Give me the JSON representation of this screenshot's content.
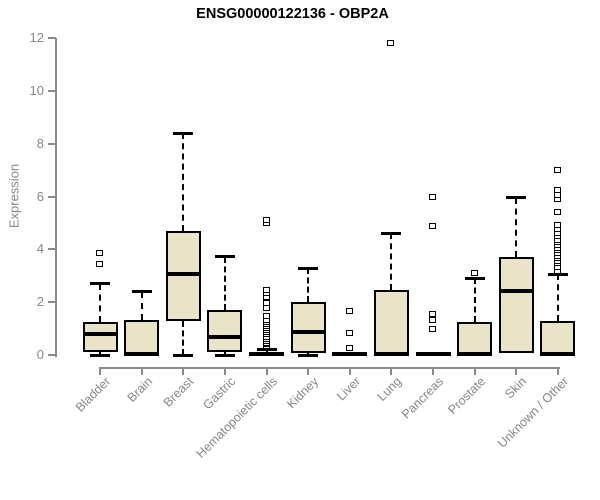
{
  "title": "ENSG00000122136 - OBP2A",
  "colors": {
    "box_fill": "#E9E3C7",
    "box_border": "#000000",
    "median": "#000000",
    "axis": "#8a8a8a",
    "axis_text": "#878787",
    "title_text": "#000000",
    "background": "#ffffff"
  },
  "chart_data": {
    "type": "boxplot",
    "title": "ENSG00000122136 - OBP2A",
    "xlabel": "",
    "ylabel": "Expression",
    "ylim": [
      0,
      12
    ],
    "y_ticks": [
      0,
      2,
      4,
      6,
      8,
      10,
      12
    ],
    "grid": false,
    "legend": "none",
    "categories": [
      "Bladder",
      "Brain",
      "Breast",
      "Gastric",
      "Hematopoietic cells",
      "Kidney",
      "Liver",
      "Lung",
      "Pancreas",
      "Prostate",
      "Skin",
      "Unknown / Other"
    ],
    "series": [
      {
        "name": "Bladder",
        "whisker_low": 0,
        "q1": 0.1,
        "median": 0.78,
        "q3": 1.25,
        "whisker_high": 2.7,
        "outliers": [
          3.42,
          3.85
        ]
      },
      {
        "name": "Brain",
        "whisker_low": 0,
        "q1": 0,
        "median": 0.05,
        "q3": 1.33,
        "whisker_high": 2.4,
        "outliers": []
      },
      {
        "name": "Breast",
        "whisker_low": 0,
        "q1": 1.3,
        "median": 3.05,
        "q3": 4.7,
        "whisker_high": 8.4,
        "outliers": []
      },
      {
        "name": "Gastric",
        "whisker_low": 0,
        "q1": 0.12,
        "median": 0.7,
        "q3": 1.72,
        "whisker_high": 3.72,
        "outliers": []
      },
      {
        "name": "Hematopoietic cells",
        "whisker_low": 0,
        "q1": 0,
        "median": 0.04,
        "q3": 0.12,
        "whisker_high": 0.2,
        "outliers": [
          0.31,
          0.38,
          0.45,
          0.52,
          0.6,
          0.68,
          0.76,
          0.84,
          0.92,
          1.0,
          1.08,
          1.16,
          1.24,
          1.32,
          1.45,
          1.77,
          1.96,
          2.18,
          2.32,
          2.46,
          5.0,
          5.1
        ]
      },
      {
        "name": "Kidney",
        "whisker_low": 0,
        "q1": 0.08,
        "median": 0.88,
        "q3": 2.0,
        "whisker_high": 3.28,
        "outliers": []
      },
      {
        "name": "Liver",
        "whisker_low": 0,
        "q1": 0,
        "median": 0.04,
        "q3": 0.1,
        "whisker_high": 0.15,
        "outliers": [
          0.23,
          0.82,
          1.64
        ]
      },
      {
        "name": "Lung",
        "whisker_low": 0,
        "q1": 0,
        "median": 0.05,
        "q3": 2.45,
        "whisker_high": 4.62,
        "outliers": [
          11.8
        ]
      },
      {
        "name": "Pancreas",
        "whisker_low": 0,
        "q1": 0,
        "median": 0.03,
        "q3": 0.1,
        "whisker_high": 0.15,
        "outliers": [
          0.95,
          1.3,
          1.55,
          4.85,
          5.95
        ]
      },
      {
        "name": "Prostate",
        "whisker_low": 0,
        "q1": 0,
        "median": 0.05,
        "q3": 1.25,
        "whisker_high": 2.9,
        "outliers": [
          3.1
        ]
      },
      {
        "name": "Skin",
        "whisker_low": 0,
        "q1": 0.07,
        "median": 2.43,
        "q3": 3.7,
        "whisker_high": 5.95,
        "outliers": []
      },
      {
        "name": "Unknown / Other",
        "whisker_low": 0,
        "q1": 0,
        "median": 0.05,
        "q3": 1.3,
        "whisker_high": 3.05,
        "outliers": [
          3.15,
          3.3,
          3.45,
          3.55,
          3.65,
          3.75,
          3.85,
          3.95,
          4.05,
          4.15,
          4.25,
          4.35,
          4.5,
          4.6,
          4.75,
          4.9,
          5.4,
          5.9,
          6.05,
          6.25,
          7.0
        ]
      }
    ]
  }
}
